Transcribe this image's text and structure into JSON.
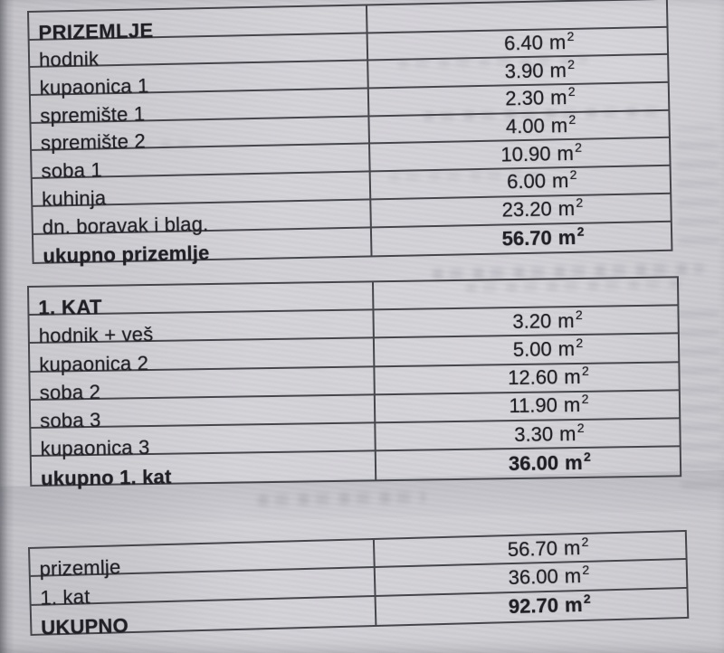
{
  "unit": {
    "base": "m",
    "exponent": "2"
  },
  "tables": [
    {
      "name": "prizemlje",
      "header": {
        "label": "PRIZEMLJE",
        "value": ""
      },
      "rows": [
        {
          "label": "hodnik",
          "value": "6.40"
        },
        {
          "label": "kupaonica 1",
          "value": "3.90"
        },
        {
          "label": "spremište 1",
          "value": "2.30"
        },
        {
          "label": "spremište 2",
          "value": "4.00"
        },
        {
          "label": "soba 1",
          "value": "10.90"
        },
        {
          "label": "kuhinja",
          "value": "6.00"
        },
        {
          "label": "dn. boravak i blag.",
          "value": "23.20"
        }
      ],
      "total": {
        "label": "ukupno prizemlje",
        "value": "56.70"
      }
    },
    {
      "name": "prvi-kat",
      "header": {
        "label": "1. KAT",
        "value": ""
      },
      "rows": [
        {
          "label": "hodnik + veš",
          "value": "3.20"
        },
        {
          "label": "kupaonica 2",
          "value": "5.00"
        },
        {
          "label": "soba 2",
          "value": "12.60"
        },
        {
          "label": "soba 3",
          "value": "11.90"
        },
        {
          "label": "kupaonica 3",
          "value": "3.30"
        }
      ],
      "total": {
        "label": "ukupno 1. kat",
        "value": "36.00"
      }
    },
    {
      "name": "sazetak",
      "rows": [
        {
          "label": "prizemlje",
          "value": "56.70"
        },
        {
          "label": "1. kat",
          "value": "36.00"
        }
      ],
      "total": {
        "label": "UKUPNO",
        "value": "92.70"
      }
    }
  ]
}
